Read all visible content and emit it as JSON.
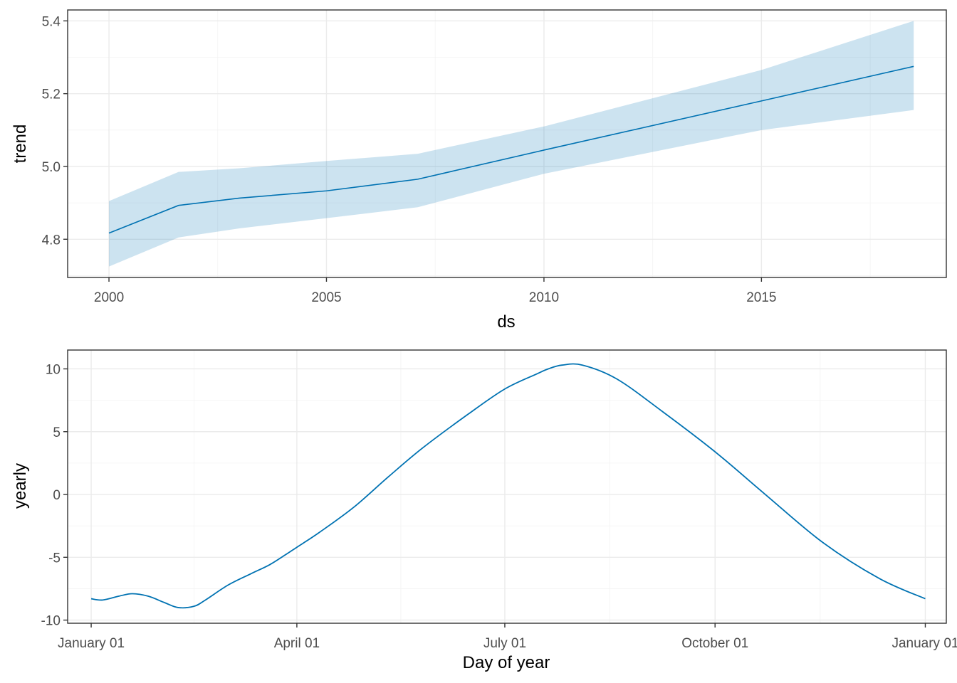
{
  "chart_data": [
    {
      "type": "line",
      "xlabel": "ds",
      "ylabel": "trend",
      "xlim": [
        1999.05,
        2019.25
      ],
      "ylim": [
        4.695,
        5.43
      ],
      "x_ticks": [
        2000,
        2005,
        2010,
        2015
      ],
      "x_tick_labels": [
        "2000",
        "2005",
        "2010",
        "2015"
      ],
      "y_ticks": [
        4.8,
        5.0,
        5.2,
        5.4
      ],
      "y_tick_labels": [
        "4.8",
        "5.0",
        "5.2",
        "5.4"
      ],
      "grid": true,
      "colors": {
        "line": "#0072B2",
        "band": "#0072B2"
      },
      "series": [
        {
          "x": [
            2000.0,
            2001.6,
            2003.0,
            2005.0,
            2007.1,
            2010.0,
            2015.0,
            2018.5
          ],
          "values": [
            4.817,
            4.893,
            4.913,
            4.933,
            4.965,
            5.045,
            5.18,
            5.275
          ],
          "lower": [
            4.725,
            4.805,
            4.83,
            4.858,
            4.888,
            4.98,
            5.1,
            5.155
          ],
          "upper": [
            4.905,
            4.985,
            4.995,
            5.015,
            5.035,
            5.11,
            5.265,
            5.4
          ]
        }
      ]
    },
    {
      "type": "line",
      "xlabel": "Day of year",
      "ylabel": "yearly",
      "xlim": [
        -10.3,
        374.2
      ],
      "ylim": [
        -10.25,
        11.5
      ],
      "x_ticks": [
        0,
        90,
        181,
        273,
        365
      ],
      "x_tick_labels": [
        "January 01",
        "April 01",
        "July 01",
        "October 01",
        "January 01"
      ],
      "y_ticks": [
        -10,
        -5,
        0,
        5,
        10
      ],
      "y_tick_labels": [
        "-10",
        "-5",
        "0",
        "5",
        "10"
      ],
      "grid": true,
      "colors": {
        "line": "#0072B2",
        "band": "#0072B2"
      },
      "series": [
        {
          "x": [
            0,
            5,
            12,
            18,
            25,
            32,
            38,
            45,
            50,
            60,
            70,
            78,
            85,
            90,
            100,
            115,
            130,
            145,
            165,
            181,
            195,
            200,
            206,
            215,
            230,
            250,
            273,
            295,
            320,
            345,
            365
          ],
          "values": [
            -8.3,
            -8.4,
            -8.1,
            -7.9,
            -8.1,
            -8.6,
            -9.0,
            -8.9,
            -8.4,
            -7.2,
            -6.3,
            -5.6,
            -4.8,
            -4.2,
            -3.0,
            -1.0,
            1.4,
            3.7,
            6.4,
            8.4,
            9.6,
            10.0,
            10.3,
            10.3,
            9.2,
            6.6,
            3.4,
            0.0,
            -3.8,
            -6.7,
            -8.3
          ]
        }
      ]
    }
  ]
}
